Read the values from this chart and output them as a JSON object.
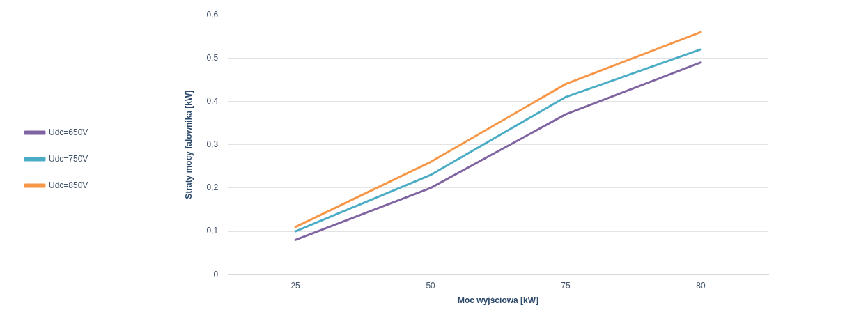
{
  "chart_data": {
    "type": "line",
    "xlabel": "Moc wyjściowa [kW]",
    "ylabel": "Straty mocy falownika [kW]",
    "categories": [
      "25",
      "50",
      "75",
      "80"
    ],
    "series": [
      {
        "name": "Udc=650V",
        "color": "#8064a2",
        "values": [
          0.08,
          0.2,
          0.37,
          0.49
        ]
      },
      {
        "name": "Udc=750V",
        "color": "#4bacc6",
        "values": [
          0.1,
          0.23,
          0.41,
          0.52
        ]
      },
      {
        "name": "Udc=850V",
        "color": "#f79646",
        "values": [
          0.11,
          0.26,
          0.44,
          0.56
        ]
      }
    ],
    "ylim": [
      0,
      0.6
    ],
    "yticks": [
      0,
      {
        "value": 0.1,
        "label": "0,1"
      },
      {
        "value": 0.2,
        "label": "0,2"
      },
      {
        "value": 0.3,
        "label": "0,3"
      },
      {
        "value": 0.4,
        "label": "0,4"
      },
      {
        "value": 0.5,
        "label": "0,5"
      },
      {
        "value": 0.6,
        "label": "0,6"
      }
    ],
    "grid": "y",
    "legend": "left",
    "marker": "none",
    "line_style": "solid"
  }
}
